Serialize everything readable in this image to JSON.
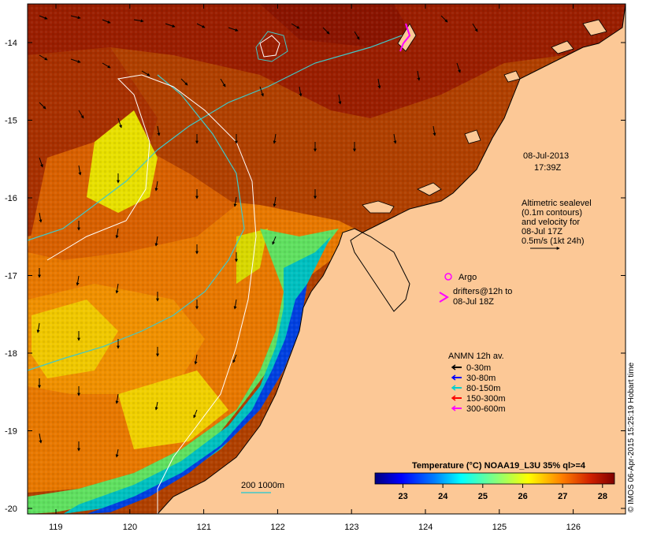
{
  "map": {
    "date": "08-Jul-2013",
    "time": "17:39Z",
    "lat_ticks": [
      "-14",
      "-15",
      "-16",
      "-17",
      "-18",
      "-19",
      "-20"
    ],
    "lon_ticks": [
      "119",
      "120",
      "121",
      "122",
      "123",
      "124",
      "125",
      "126"
    ],
    "altimetric_lines": [
      "Altimetric sealevel",
      "(0.1m contours)",
      "and velocity for",
      "08-Jul 17Z",
      "0.5m/s (1kt 24h)"
    ],
    "argo_label": "Argo",
    "drifters_line1": "drifters@12h to",
    "drifters_line2": "08-Jul 18Z",
    "anmn": {
      "title": "ANMN 12h av.",
      "items": [
        {
          "label": "0-30m",
          "color": "#000000"
        },
        {
          "label": "30-80m",
          "color": "#0000ff"
        },
        {
          "label": "80-150m",
          "color": "#00d0d0"
        },
        {
          "label": "150-300m",
          "color": "#ff0000"
        },
        {
          "label": "300-600m",
          "color": "#ff00ff"
        }
      ]
    },
    "isobath_label": "200  1000m",
    "colorbar": {
      "title": "Temperature (°C) NOAA19_L3U 35% ql>=4",
      "ticks": [
        "23",
        "24",
        "25",
        "26",
        "27",
        "28"
      ],
      "range": [
        22.3,
        28.3
      ]
    },
    "credit": "© IMOS 06-Apr-2015 15:25:19 Hobart time",
    "colors": {
      "land": "#fcc896",
      "accent_magenta": "#ff00ff",
      "isobath": "#40c8c8"
    }
  }
}
